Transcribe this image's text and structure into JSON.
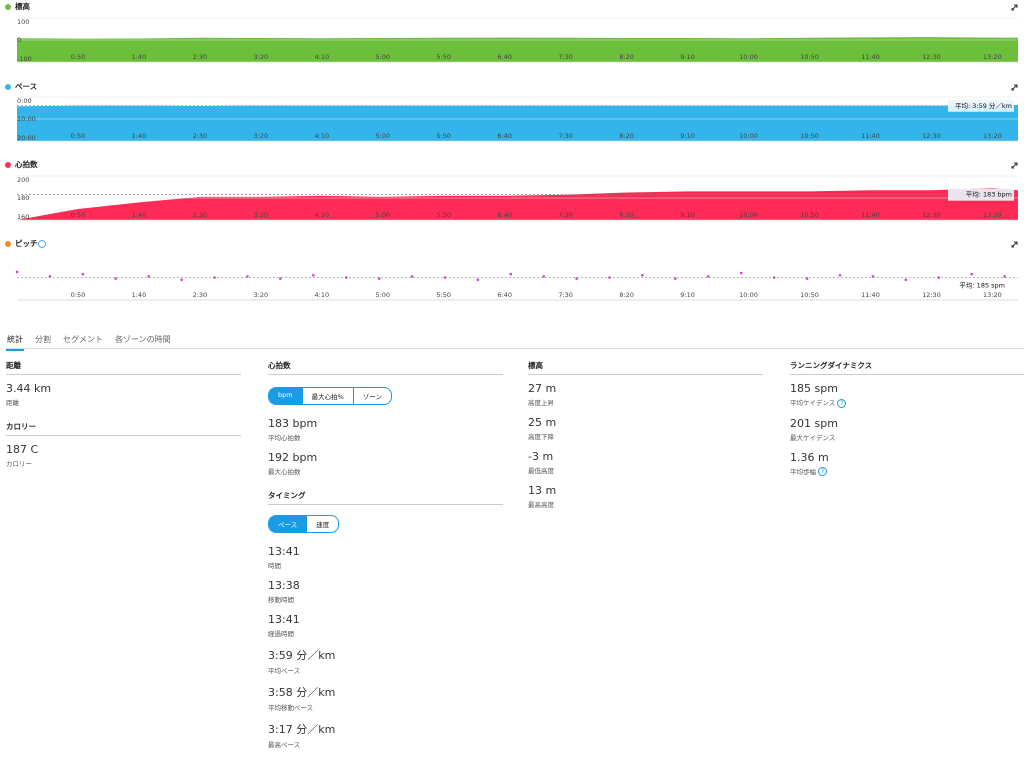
{
  "chart_data": [
    {
      "type": "area",
      "title": "標高",
      "icon_color": "#6cbf3a",
      "color": "#6cbf3a",
      "x": [
        0,
        50,
        100,
        150,
        200,
        250,
        300,
        350,
        400,
        450,
        500,
        550,
        600,
        650,
        700,
        750,
        800,
        821
      ],
      "values": [
        8,
        6,
        7,
        10,
        9,
        8,
        9,
        10,
        11,
        10,
        9,
        9,
        8,
        10,
        12,
        13,
        11,
        10
      ],
      "xlim": [
        0,
        821
      ],
      "ylim": [
        -100,
        100
      ],
      "yticks": [
        100,
        0,
        -100
      ],
      "xticks": [
        {
          "value": 50,
          "label": "0:50"
        },
        {
          "value": 100,
          "label": "1:40"
        },
        {
          "value": 150,
          "label": "2:30"
        },
        {
          "value": 200,
          "label": "3:20"
        },
        {
          "value": 250,
          "label": "4:10"
        },
        {
          "value": 300,
          "label": "5:00"
        },
        {
          "value": 350,
          "label": "5:50"
        },
        {
          "value": 400,
          "label": "6:40"
        },
        {
          "value": 450,
          "label": "7:30"
        },
        {
          "value": 500,
          "label": "8:20"
        },
        {
          "value": 550,
          "label": "9:10"
        },
        {
          "value": 600,
          "label": "10:00"
        },
        {
          "value": 650,
          "label": "10:50"
        },
        {
          "value": 700,
          "label": "11:40"
        },
        {
          "value": 750,
          "label": "12:30"
        },
        {
          "value": 800,
          "label": "13:20"
        }
      ],
      "grid": true
    },
    {
      "type": "area",
      "title": "ペース",
      "icon_color": "#33b5ec",
      "color": "#33b5ec",
      "invert_y": true,
      "x": [
        0,
        50,
        100,
        150,
        200,
        250,
        300,
        350,
        400,
        450,
        500,
        550,
        600,
        650,
        700,
        750,
        800,
        821
      ],
      "values": [
        4.2,
        4.0,
        3.9,
        4.1,
        3.9,
        4.0,
        3.9,
        4.0,
        3.9,
        4.0,
        3.9,
        4.0,
        3.9,
        3.9,
        4.0,
        3.9,
        4.0,
        3.6
      ],
      "average": 3.98,
      "average_label": "平均: 3:59 分／km",
      "xlim": [
        0,
        821
      ],
      "ylim": [
        0,
        20
      ],
      "yticks": [
        {
          "value": 0,
          "label": "0:00"
        },
        {
          "value": 10,
          "label": "10:00"
        },
        {
          "value": 20,
          "label": "20:00"
        }
      ],
      "xticks": [
        {
          "value": 50,
          "label": "0:50"
        },
        {
          "value": 100,
          "label": "1:40"
        },
        {
          "value": 150,
          "label": "2:30"
        },
        {
          "value": 200,
          "label": "3:20"
        },
        {
          "value": 250,
          "label": "4:10"
        },
        {
          "value": 300,
          "label": "5:00"
        },
        {
          "value": 350,
          "label": "5:50"
        },
        {
          "value": 400,
          "label": "6:40"
        },
        {
          "value": 450,
          "label": "7:30"
        },
        {
          "value": 500,
          "label": "8:20"
        },
        {
          "value": 550,
          "label": "9:10"
        },
        {
          "value": 600,
          "label": "10:00"
        },
        {
          "value": 650,
          "label": "10:50"
        },
        {
          "value": 700,
          "label": "11:40"
        },
        {
          "value": 750,
          "label": "12:30"
        },
        {
          "value": 800,
          "label": "13:20"
        }
      ],
      "grid": true
    },
    {
      "type": "area",
      "title": "心拍数",
      "icon_color": "#ff2a55",
      "color": "#ff2a55",
      "x": [
        0,
        50,
        100,
        150,
        200,
        250,
        300,
        350,
        400,
        450,
        500,
        550,
        600,
        650,
        700,
        750,
        800,
        821
      ],
      "values": [
        160,
        170,
        176,
        181,
        181,
        182,
        181,
        182,
        182,
        183,
        185,
        186,
        186,
        186,
        187,
        187,
        189,
        187
      ],
      "average": 183,
      "average_label": "平均: 183 bpm",
      "xlim": [
        0,
        821
      ],
      "ylim": [
        160,
        200
      ],
      "yticks": [
        200,
        180,
        160
      ],
      "xticks": [
        {
          "value": 50,
          "label": "0:50"
        },
        {
          "value": 100,
          "label": "1:40"
        },
        {
          "value": 150,
          "label": "2:30"
        },
        {
          "value": 200,
          "label": "3:20"
        },
        {
          "value": 250,
          "label": "4:10"
        },
        {
          "value": 300,
          "label": "5:00"
        },
        {
          "value": 350,
          "label": "5:50"
        },
        {
          "value": 400,
          "label": "6:40"
        },
        {
          "value": 450,
          "label": "7:30"
        },
        {
          "value": 500,
          "label": "8:20"
        },
        {
          "value": 550,
          "label": "9:10"
        },
        {
          "value": 600,
          "label": "10:00"
        },
        {
          "value": 650,
          "label": "10:50"
        },
        {
          "value": 700,
          "label": "11:40"
        },
        {
          "value": 750,
          "label": "12:30"
        },
        {
          "value": 800,
          "label": "13:20"
        }
      ],
      "grid": true
    },
    {
      "type": "scatter",
      "title": "ピッチ",
      "icon_color": "#f28c28",
      "color": "#d63ad6",
      "help": true,
      "x": [
        0,
        27,
        54,
        81,
        108,
        135,
        162,
        189,
        216,
        243,
        270,
        297,
        324,
        351,
        378,
        405,
        432,
        459,
        486,
        513,
        540,
        567,
        594,
        621,
        648,
        675,
        702,
        729,
        756,
        783,
        810
      ],
      "values": [
        190,
        186,
        188,
        184,
        186,
        183,
        185,
        186,
        184,
        187,
        185,
        184,
        186,
        185,
        183,
        188,
        186,
        184,
        185,
        187,
        184,
        186,
        189,
        185,
        184,
        187,
        186,
        183,
        185,
        188,
        186
      ],
      "average": 185,
      "average_label": "平均: 185 spm",
      "xlim": [
        0,
        821
      ],
      "ylim": [
        165,
        205
      ],
      "xticks": [
        {
          "value": 50,
          "label": "0:50"
        },
        {
          "value": 100,
          "label": "1:40"
        },
        {
          "value": 150,
          "label": "2:30"
        },
        {
          "value": 200,
          "label": "3:20"
        },
        {
          "value": 250,
          "label": "4:10"
        },
        {
          "value": 300,
          "label": "5:00"
        },
        {
          "value": 350,
          "label": "5:50"
        },
        {
          "value": 400,
          "label": "6:40"
        },
        {
          "value": 450,
          "label": "7:30"
        },
        {
          "value": 500,
          "label": "8:20"
        },
        {
          "value": 550,
          "label": "9:10"
        },
        {
          "value": 600,
          "label": "10:00"
        },
        {
          "value": 650,
          "label": "10:50"
        },
        {
          "value": 700,
          "label": "11:40"
        },
        {
          "value": 750,
          "label": "12:30"
        },
        {
          "value": 800,
          "label": "13:20"
        }
      ],
      "grid": false
    }
  ],
  "tabs": [
    "統計",
    "分割",
    "セグメント",
    "各ゾーンの時間"
  ],
  "stats": [
    [
      {
        "title": "距離",
        "items": [
          {
            "value": "3.44 km",
            "label": "距離"
          }
        ]
      },
      {
        "title": "カロリー",
        "items": [
          {
            "value": "187 C",
            "label": "カロリー"
          }
        ]
      }
    ],
    [
      {
        "title": "心拍数",
        "toggle": [
          "bpm",
          "最大心拍%",
          "ゾーン"
        ],
        "items": [
          {
            "value": "183 bpm",
            "label": "平均心拍数"
          },
          {
            "value": "192 bpm",
            "label": "最大心拍数"
          }
        ]
      },
      {
        "title": "タイミング",
        "toggle": [
          "ペース",
          "速度"
        ],
        "items": [
          {
            "value": "13:41",
            "label": "時間"
          },
          {
            "value": "13:38",
            "label": "移動時間"
          },
          {
            "value": "13:41",
            "label": "経過時間"
          },
          {
            "value": "3:59 分／km",
            "label": "平均ペース"
          },
          {
            "value": "3:58 分／km",
            "label": "平均移動ペース"
          },
          {
            "value": "3:17 分／km",
            "label": "最高ペース"
          }
        ]
      }
    ],
    [
      {
        "title": "標高",
        "items": [
          {
            "value": "27 m",
            "label": "高度上昇"
          },
          {
            "value": "25 m",
            "label": "高度下降"
          },
          {
            "value": "-3 m",
            "label": "最低高度"
          },
          {
            "value": "13 m",
            "label": "最高高度"
          }
        ]
      }
    ],
    [
      {
        "title": "ランニングダイナミクス",
        "items": [
          {
            "value": "185 spm",
            "label": "平均ケイデンス",
            "help": true
          },
          {
            "value": "201 spm",
            "label": "最大ケイデンス"
          },
          {
            "value": "1.36 m",
            "label": "平均歩幅",
            "help": true
          }
        ]
      }
    ]
  ]
}
